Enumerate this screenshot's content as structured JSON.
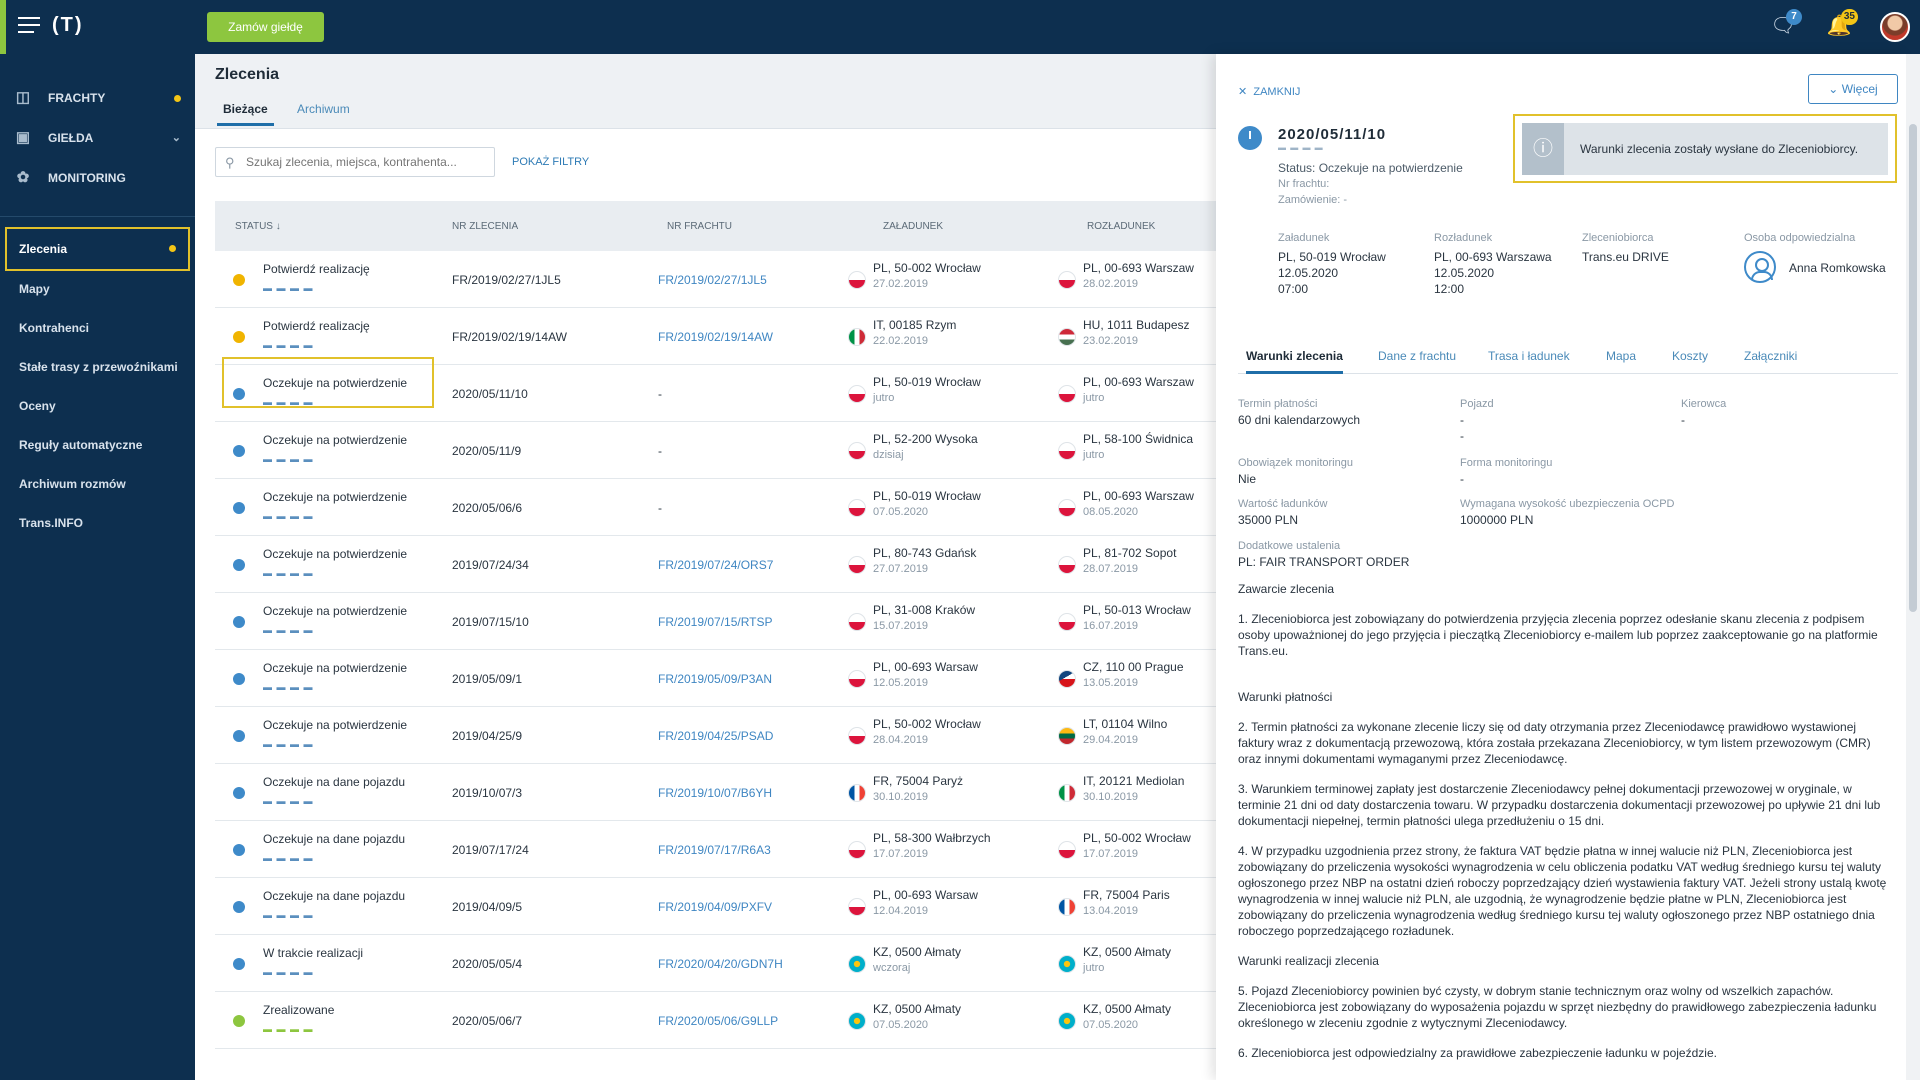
{
  "topbar": {
    "logo": "(T)",
    "order_button": "Zamów giełdę",
    "messages_badge": "7",
    "notifications_badge": "35"
  },
  "sidebar": {
    "main": [
      {
        "label": "FRACHTY",
        "icon": "truck-icon",
        "dot": true
      },
      {
        "label": "GIEŁDA",
        "icon": "box-icon",
        "chevron": true
      },
      {
        "label": "MONITORING",
        "icon": "satellite-icon"
      }
    ],
    "sub": [
      {
        "label": "Zlecenia",
        "active": true,
        "dot": true
      },
      {
        "label": "Mapy"
      },
      {
        "label": "Kontrahenci"
      },
      {
        "label": "Stałe trasy z przewoźnikami"
      },
      {
        "label": "Oceny"
      },
      {
        "label": "Reguły automatyczne"
      },
      {
        "label": "Archiwum rozmów"
      },
      {
        "label": "Trans.INFO"
      }
    ]
  },
  "main": {
    "title": "Zlecenia",
    "tabs": [
      "Bieżące",
      "Archiwum"
    ],
    "search_placeholder": "Szukaj zlecenia, miejsca, kontrahenta...",
    "filters": "POKAŻ FILTRY",
    "columns": [
      "STATUS ↓",
      "NR ZLECENIA",
      "NR FRACHTU",
      "ZAŁADUNEK",
      "ROZŁADUNEK"
    ],
    "rows": [
      {
        "status": "Potwierdź realizację",
        "icon": "warn",
        "nr": "FR/2019/02/27/1JL5",
        "fr": "FR/2019/02/27/1JL5",
        "load": "PL, 50-002 Wrocław",
        "load_date": "27.02.2019",
        "load_flag": "pl",
        "unload": "PL, 00-693 Warszaw",
        "unload_date": "28.02.2019",
        "unload_flag": "pl"
      },
      {
        "status": "Potwierdź realizację",
        "icon": "warn",
        "nr": "FR/2019/02/19/14AW",
        "fr": "FR/2019/02/19/14AW",
        "load": "IT, 00185 Rzym",
        "load_date": "22.02.2019",
        "load_flag": "it",
        "unload": "HU, 1011 Budapesz",
        "unload_date": "23.02.2019",
        "unload_flag": "hu"
      },
      {
        "status": "Oczekuje na potwierdzenie",
        "icon": "clock",
        "nr": "2020/05/11/10",
        "fr": "-",
        "load": "PL, 50-019 Wrocław",
        "load_date": "jutro",
        "load_flag": "pl",
        "unload": "PL, 00-693 Warszaw",
        "unload_date": "jutro",
        "unload_flag": "pl"
      },
      {
        "status": "Oczekuje na potwierdzenie",
        "icon": "clock",
        "nr": "2020/05/11/9",
        "fr": "-",
        "load": "PL, 52-200 Wysoka",
        "load_date": "dzisiaj",
        "load_flag": "pl",
        "unload": "PL, 58-100 Świdnica",
        "unload_date": "jutro",
        "unload_flag": "pl"
      },
      {
        "status": "Oczekuje na potwierdzenie",
        "icon": "clock",
        "nr": "2020/05/06/6",
        "fr": "-",
        "load": "PL, 50-019 Wrocław",
        "load_date": "07.05.2020",
        "load_flag": "pl",
        "unload": "PL, 00-693 Warszaw",
        "unload_date": "08.05.2020",
        "unload_flag": "pl"
      },
      {
        "status": "Oczekuje na potwierdzenie",
        "icon": "clock",
        "nr": "2019/07/24/34",
        "fr": "FR/2019/07/24/ORS7",
        "load": "PL, 80-743 Gdańsk",
        "load_date": "27.07.2019",
        "load_flag": "pl",
        "unload": "PL, 81-702 Sopot",
        "unload_date": "28.07.2019",
        "unload_flag": "pl"
      },
      {
        "status": "Oczekuje na potwierdzenie",
        "icon": "clock",
        "nr": "2019/07/15/10",
        "fr": "FR/2019/07/15/RTSP",
        "load": "PL, 31-008 Kraków",
        "load_date": "15.07.2019",
        "load_flag": "pl",
        "unload": "PL, 50-013 Wrocław",
        "unload_date": "16.07.2019",
        "unload_flag": "pl"
      },
      {
        "status": "Oczekuje na potwierdzenie",
        "icon": "clock",
        "nr": "2019/05/09/1",
        "fr": "FR/2019/05/09/P3AN",
        "load": "PL, 00-693 Warsaw",
        "load_date": "12.05.2019",
        "load_flag": "pl",
        "unload": "CZ, 110 00 Prague",
        "unload_date": "13.05.2019",
        "unload_flag": "cz"
      },
      {
        "status": "Oczekuje na potwierdzenie",
        "icon": "clock",
        "nr": "2019/04/25/9",
        "fr": "FR/2019/04/25/PSAD",
        "load": "PL, 50-002 Wrocław",
        "load_date": "28.04.2019",
        "load_flag": "pl",
        "unload": "LT, 01104 Wilno",
        "unload_date": "29.04.2019",
        "unload_flag": "lt"
      },
      {
        "status": "Oczekuje na dane pojazdu",
        "icon": "clock",
        "nr": "2019/10/07/3",
        "fr": "FR/2019/10/07/B6YH",
        "load": "FR, 75004 Paryż",
        "load_date": "30.10.2019",
        "load_flag": "fr",
        "unload": "IT, 20121 Mediolan",
        "unload_date": "30.10.2019",
        "unload_flag": "it"
      },
      {
        "status": "Oczekuje na dane pojazdu",
        "icon": "clock",
        "nr": "2019/07/17/24",
        "fr": "FR/2019/07/17/R6A3",
        "load": "PL, 58-300 Wałbrzych",
        "load_date": "17.07.2019",
        "load_flag": "pl",
        "unload": "PL, 50-002 Wrocław",
        "unload_date": "17.07.2019",
        "unload_flag": "pl"
      },
      {
        "status": "Oczekuje na dane pojazdu",
        "icon": "clock",
        "nr": "2019/04/09/5",
        "fr": "FR/2019/04/09/PXFV",
        "load": "PL, 00-693 Warsaw",
        "load_date": "12.04.2019",
        "load_flag": "pl",
        "unload": "FR, 75004 Paris",
        "unload_date": "13.04.2019",
        "unload_flag": "fr"
      },
      {
        "status": "W trakcie realizacji",
        "icon": "clock",
        "nr": "2020/05/05/4",
        "fr": "FR/2020/04/20/GDN7H",
        "load": "KZ, 0500 Ałmaty",
        "load_date": "wczoraj",
        "load_flag": "kz",
        "unload": "KZ, 0500 Ałmaty",
        "unload_date": "jutro",
        "unload_flag": "kz"
      },
      {
        "status": "Zrealizowane",
        "icon": "ok",
        "nr": "2020/05/06/7",
        "fr": "FR/2020/05/06/G9LLP",
        "load": "KZ, 0500 Ałmaty",
        "load_date": "07.05.2020",
        "load_flag": "kz",
        "unload": "KZ, 0500 Ałmaty",
        "unload_date": "07.05.2020",
        "unload_flag": "kz"
      }
    ]
  },
  "panel": {
    "close": "ZAMKNIJ",
    "more": "Więcej",
    "info": "Warunki zlecenia zostały wysłane do Zleceniobiorcy.",
    "order_number": "2020/05/11/10",
    "status": "Status: Oczekuje na potwierdzenie",
    "nr_frachtu": "Nr frachtu:",
    "zamowienie": "Zamówienie: -",
    "summary": [
      {
        "h": "Załadunek",
        "l1": "PL, 50-019 Wrocław",
        "l2": "12.05.2020",
        "l3": "07:00"
      },
      {
        "h": "Rozładunek",
        "l1": "PL, 00-693 Warszawa",
        "l2": "12.05.2020",
        "l3": "12:00"
      },
      {
        "h": "Zleceniobiorca",
        "l1": "Trans.eu DRIVE",
        "l2": "",
        "l3": ""
      },
      {
        "h": "Osoba odpowiedzialna",
        "l1": "",
        "l2": "",
        "l3": ""
      }
    ],
    "person": "Anna Romkowska",
    "tabs": [
      "Warunki zlecenia",
      "Dane z frachtu",
      "Trasa i ładunek",
      "Mapa",
      "Koszty",
      "Załączniki"
    ],
    "fields": {
      "termin_h": "Termin płatności",
      "termin": "60 dni kalendarzowych",
      "pojazd_h": "Pojazd",
      "pojazd1": "-",
      "pojazd2": "-",
      "kierowca_h": "Kierowca",
      "kierowca": "-",
      "monit_h": "Obowiązek monitoringu",
      "monit": "Nie",
      "forma_h": "Forma monitoringu",
      "forma": "-",
      "wartosc_h": "Wartość ładunków",
      "wartosc": "35000 PLN",
      "ocpd_h": "Wymagana wysokość ubezpieczenia OCPD",
      "ocpd": "1000000 PLN",
      "dod_h": "Dodatkowe ustalenia",
      "dod": "PL: FAIR TRANSPORT ORDER"
    },
    "text": {
      "zawarcie": "Zawarcie zlecenia",
      "p1": "1. Zleceniobiorca jest zobowiązany do potwierdzenia przyjęcia zlecenia poprzez odesłanie skanu zlecenia z podpisem osoby upoważnionej do jego przyjęcia i pieczątką Zleceniobiorcy e-mailem lub poprzez zaakceptowanie go na platformie Trans.eu.",
      "platnosci": "Warunki płatności",
      "p2": "2. Termin płatności za wykonane zlecenie liczy się od daty otrzymania przez Zleceniodawcę prawidłowo wystawionej faktury wraz z dokumentacją przewozową, która została przekazana Zleceniobiorcy, w tym listem przewozowym (CMR) oraz innymi dokumentami wymaganymi przez Zleceniodawcę.",
      "p3": "3. Warunkiem terminowej zapłaty jest dostarczenie Zleceniodawcy pełnej dokumentacji przewozowej w oryginale, w terminie 21 dni od daty dostarczenia towaru. W przypadku dostarczenia dokumentacji przewozowej po upływie 21 dni lub dokumentacji niepełnej, termin płatności ulega przedłużeniu o 15 dni.",
      "p4": "4. W przypadku uzgodnienia przez strony, że faktura VAT będzie płatna w innej walucie niż PLN, Zleceniobiorca jest zobowiązany do przeliczenia wysokości wynagrodzenia w celu obliczenia podatku VAT według średniego kursu tej waluty ogłoszonego przez NBP na ostatni dzień roboczy poprzedzający dzień wystawienia faktury VAT. Jeżeli strony ustalą kwotę wynagrodzenia w innej walucie niż PLN, ale uzgodnią, że wynagrodzenie będzie płatne w PLN, Zleceniobiorca jest zobowiązany do przeliczenia wynagrodzenia według średniego kursu tej waluty ogłoszonego przez NBP ostatniego dnia roboczego poprzedzającego rozładunek.",
      "realizacji": "Warunki realizacji zlecenia",
      "p5": "5. Pojazd Zleceniobiorcy powinien być czysty, w dobrym stanie technicznym    oraz wolny od wszelkich zapachów. Zleceniobiorca jest zobowiązany do wyposażenia pojazdu w sprzęt niezbędny do prawidłowego zabezpieczenia ładunku określonego w zleceniu zgodnie z wytycznymi Zleceniodawcy.",
      "p6": "6. Zleceniobiorca jest odpowiedzialny za prawidłowe zabezpieczenie ładunku w pojeździe."
    }
  }
}
